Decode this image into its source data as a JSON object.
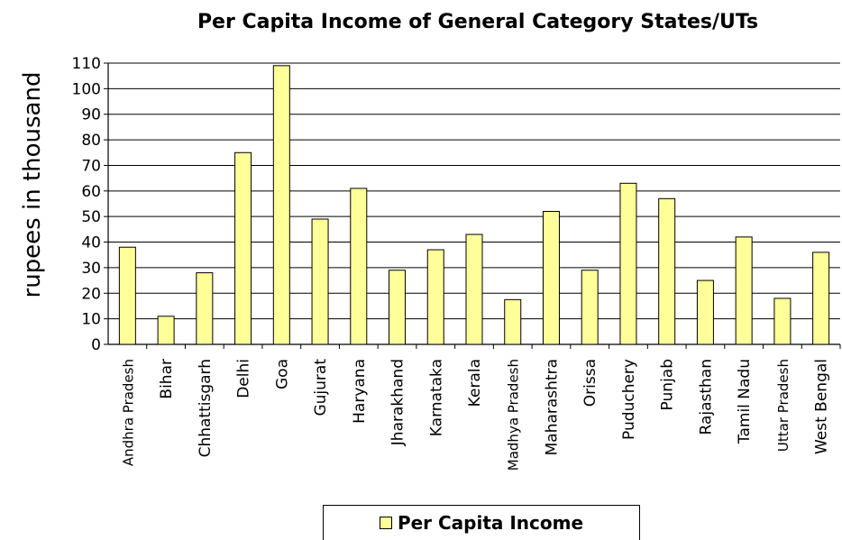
{
  "chart_data": {
    "type": "bar",
    "title": "Per Capita Income of General Category States/UTs",
    "ylabel": "rupees in thousand",
    "xlabel": "",
    "ylim": [
      0,
      110
    ],
    "yticks": [
      "0",
      "10",
      "20",
      "30",
      "40",
      "50",
      "60",
      "70",
      "80",
      "90",
      "100",
      "110"
    ],
    "grid": true,
    "legend_position": "bottom",
    "bar_color": "#ffff99",
    "categories": [
      "Andhra Pradesh",
      "Bihar",
      "Chhattisgarh",
      "Delhi",
      "Goa",
      "Gujurat",
      "Haryana",
      "Jharakhand",
      "Karnataka",
      "Kerala",
      "Madhya Pradesh",
      "Maharashtra",
      "Orissa",
      "Puduchery",
      "Punjab",
      "Rajasthan",
      "Tamil Nadu",
      "Uttar Pradesh",
      "West Bengal"
    ],
    "series": [
      {
        "name": "Per Capita Income",
        "values": [
          38,
          11,
          28,
          75,
          109,
          49,
          61,
          29,
          37,
          43,
          17.5,
          52,
          29,
          63,
          57,
          25,
          42,
          18,
          36
        ]
      }
    ]
  }
}
